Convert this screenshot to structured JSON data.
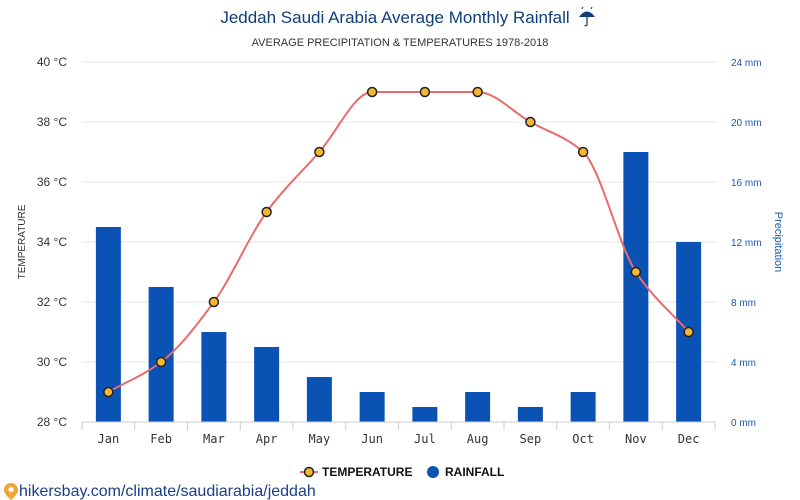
{
  "chart_data": {
    "type": "bar",
    "title": "Jeddah Saudi Arabia Average Monthly Rainfall",
    "title_icon": "umbrella-rain-icon",
    "subtitle": "AVERAGE PRECIPITATION & TEMPERATURES 1978-2018",
    "categories": [
      "Jan",
      "Feb",
      "Mar",
      "Apr",
      "May",
      "Jun",
      "Jul",
      "Aug",
      "Sep",
      "Oct",
      "Nov",
      "Dec"
    ],
    "series": [
      {
        "name": "TEMPERATURE",
        "kind": "line",
        "axis": "left",
        "color": "#e96b6b",
        "marker_fill": "#f5b731",
        "marker_stroke": "#222222",
        "values": [
          29,
          30,
          32,
          35,
          37,
          39,
          39,
          39,
          38,
          37,
          33,
          31
        ]
      },
      {
        "name": "RAINFALL",
        "kind": "bar",
        "axis": "right",
        "color": "#0a52b4",
        "values": [
          13,
          9,
          6,
          5,
          3,
          2,
          1,
          2,
          1,
          2,
          18,
          12
        ]
      }
    ],
    "y_left": {
      "label": "TEMPERATURE",
      "ylim": [
        28,
        40
      ],
      "ticks": [
        28,
        30,
        32,
        34,
        36,
        38,
        40
      ],
      "tick_labels": [
        "28 °C",
        "30 °C",
        "32 °C",
        "34 °C",
        "36 °C",
        "38 °C",
        "40 °C"
      ]
    },
    "y_right": {
      "label": "Precipitation",
      "ylim": [
        0,
        24
      ],
      "ticks": [
        0,
        4,
        8,
        12,
        16,
        20,
        24
      ],
      "tick_labels": [
        "0 mm",
        "4 mm",
        "8 mm",
        "12 mm",
        "16 mm",
        "20 mm",
        "24 mm"
      ]
    },
    "grid": true,
    "legend": {
      "position": "bottom-center",
      "items": [
        "TEMPERATURE",
        "RAINFALL"
      ]
    }
  },
  "footer": {
    "icon": "map-pin-icon",
    "url": "hikersbay.com/climate/saudiarabia/jeddah"
  }
}
